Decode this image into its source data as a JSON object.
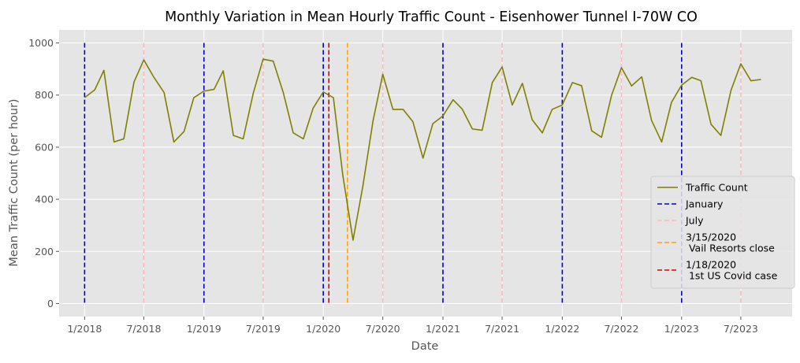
{
  "chart_data": {
    "type": "line",
    "title": "Monthly Variation in Mean Hourly Traffic Count - Eisenhower Tunnel I-70W CO",
    "xlabel": "Date",
    "ylabel": "Mean Traffic Count (per hour)",
    "ylim": [
      -50,
      1050
    ],
    "yticks": [
      0,
      200,
      400,
      600,
      800,
      1000
    ],
    "xlim": [
      "2017-10-15",
      "2023-12-05"
    ],
    "xticks": [
      {
        "date": "2018-01-01",
        "label": "1/2018"
      },
      {
        "date": "2018-07-01",
        "label": "7/2018"
      },
      {
        "date": "2019-01-01",
        "label": "1/2019"
      },
      {
        "date": "2019-07-01",
        "label": "7/2019"
      },
      {
        "date": "2020-01-01",
        "label": "1/2020"
      },
      {
        "date": "2020-07-01",
        "label": "7/2020"
      },
      {
        "date": "2021-01-01",
        "label": "1/2021"
      },
      {
        "date": "2021-07-01",
        "label": "7/2021"
      },
      {
        "date": "2022-01-01",
        "label": "1/2022"
      },
      {
        "date": "2022-07-01",
        "label": "7/2022"
      },
      {
        "date": "2023-01-01",
        "label": "1/2023"
      },
      {
        "date": "2023-07-01",
        "label": "7/2023"
      }
    ],
    "grid": true,
    "legend_position": "center-right",
    "series": [
      {
        "name": "Traffic Count",
        "color": "#808000",
        "x": [
          "2018-01-01",
          "2018-02-01",
          "2018-03-01",
          "2018-04-01",
          "2018-05-01",
          "2018-06-01",
          "2018-07-01",
          "2018-08-01",
          "2018-09-01",
          "2018-10-01",
          "2018-11-01",
          "2018-12-01",
          "2019-01-01",
          "2019-02-01",
          "2019-03-01",
          "2019-04-01",
          "2019-05-01",
          "2019-06-01",
          "2019-07-01",
          "2019-08-01",
          "2019-09-01",
          "2019-10-01",
          "2019-11-01",
          "2019-12-01",
          "2020-01-01",
          "2020-02-01",
          "2020-03-01",
          "2020-04-01",
          "2020-05-01",
          "2020-06-01",
          "2020-07-01",
          "2020-08-01",
          "2020-09-01",
          "2020-10-01",
          "2020-11-01",
          "2020-12-01",
          "2021-01-01",
          "2021-02-01",
          "2021-03-01",
          "2021-04-01",
          "2021-05-01",
          "2021-06-01",
          "2021-07-01",
          "2021-08-01",
          "2021-09-01",
          "2021-10-01",
          "2021-11-01",
          "2021-12-01",
          "2022-01-01",
          "2022-02-01",
          "2022-03-01",
          "2022-04-01",
          "2022-05-01",
          "2022-06-01",
          "2022-07-01",
          "2022-08-01",
          "2022-09-01",
          "2022-10-01",
          "2022-11-01",
          "2022-12-01",
          "2023-01-01",
          "2023-02-01",
          "2023-03-01",
          "2023-04-01",
          "2023-05-01",
          "2023-06-01",
          "2023-07-01",
          "2023-08-01",
          "2023-09-01"
        ],
        "y": [
          790,
          820,
          895,
          620,
          632,
          850,
          935,
          868,
          810,
          620,
          660,
          790,
          815,
          822,
          893,
          645,
          632,
          808,
          938,
          930,
          808,
          655,
          632,
          750,
          812,
          790,
          490,
          243,
          450,
          700,
          880,
          745,
          745,
          698,
          558,
          690,
          720,
          782,
          746,
          670,
          665,
          848,
          908,
          762,
          845,
          705,
          655,
          745,
          762,
          848,
          836,
          663,
          638,
          800,
          905,
          835,
          870,
          703,
          620,
          772,
          838,
          868,
          855,
          688,
          645,
          818,
          920,
          855,
          860
        ]
      }
    ],
    "vlines": [
      {
        "name": "January",
        "color": "#0000cd",
        "dates": [
          "2018-01-01",
          "2019-01-01",
          "2020-01-01",
          "2021-01-01",
          "2022-01-01",
          "2023-01-01"
        ]
      },
      {
        "name": "July",
        "color": "#ffb6c1",
        "dates": [
          "2018-07-01",
          "2019-07-01",
          "2020-07-01",
          "2021-07-01",
          "2022-07-01",
          "2023-07-01"
        ]
      },
      {
        "name": "3/15/2020\n Vail Resorts close",
        "color": "#ffa500",
        "dates": [
          "2020-03-15"
        ]
      },
      {
        "name": "1/18/2020\n 1st US Covid case",
        "color": "#e00000",
        "dates": [
          "2020-01-18"
        ]
      }
    ]
  }
}
